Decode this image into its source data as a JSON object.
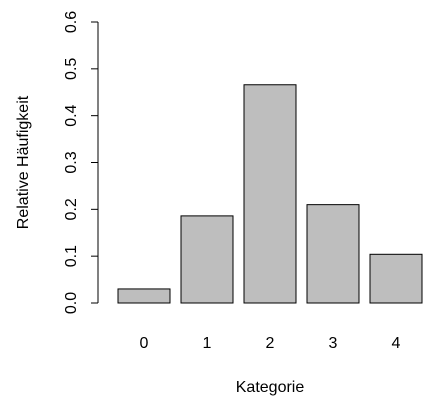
{
  "chart_data": {
    "type": "bar",
    "categories": [
      "0",
      "1",
      "2",
      "3",
      "4"
    ],
    "values": [
      0.03,
      0.186,
      0.466,
      0.21,
      0.104
    ],
    "title": "",
    "xlabel": "Kategorie",
    "ylabel": "Relative Häufigkeit",
    "ylim": [
      0,
      0.6
    ],
    "yticks": [
      0.0,
      0.1,
      0.2,
      0.3,
      0.4,
      0.5,
      0.6
    ],
    "ytick_labels": [
      "0.0",
      "0.1",
      "0.2",
      "0.3",
      "0.4",
      "0.5",
      "0.6"
    ],
    "grid": false,
    "bar_color": "#bebebe",
    "bar_edge_color": "#000000"
  }
}
